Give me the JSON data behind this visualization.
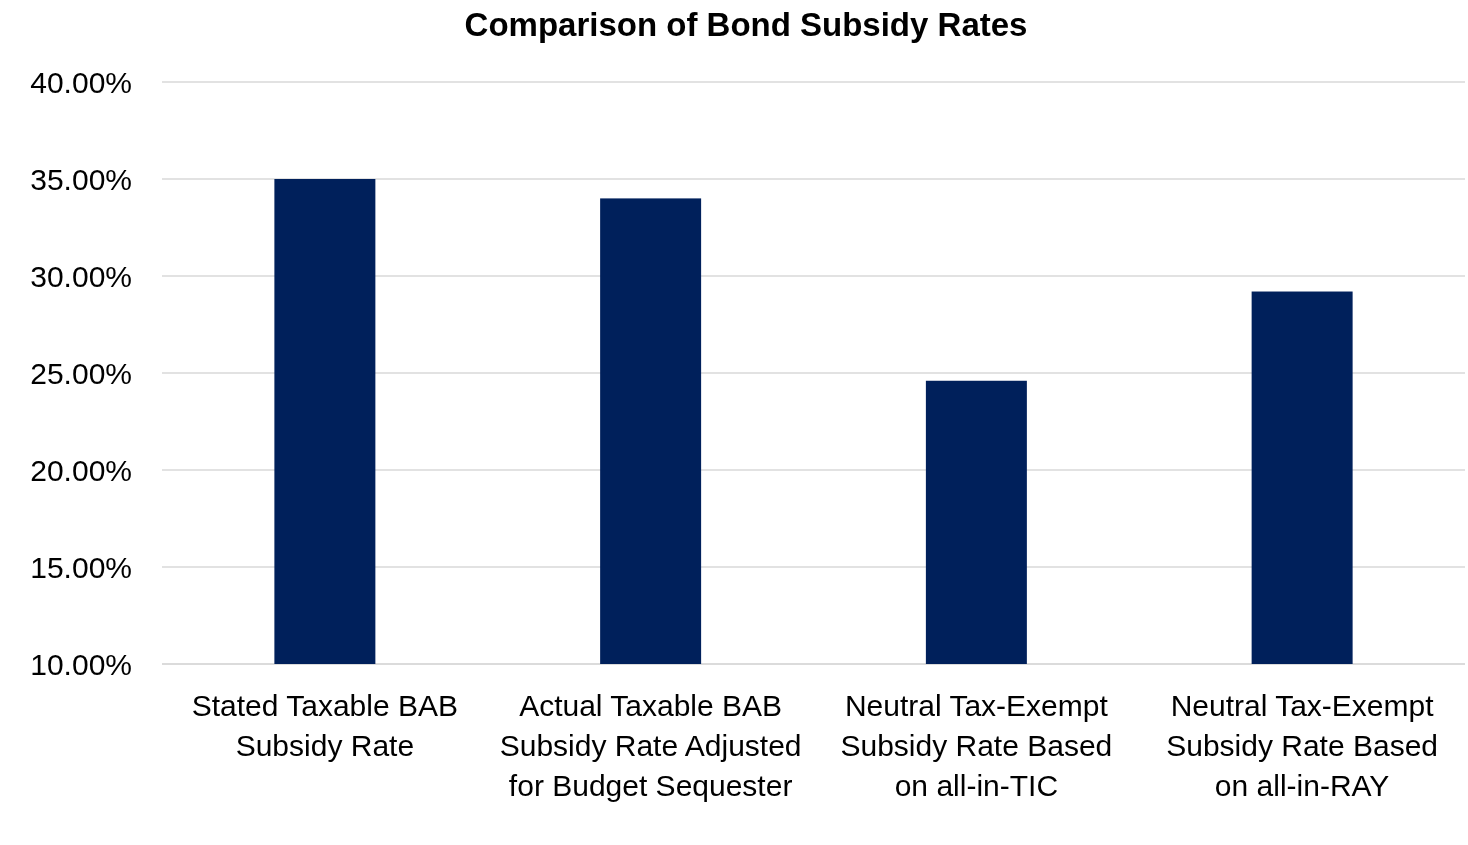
{
  "chart_data": {
    "type": "bar",
    "title": "Comparison of Bond Subsidy Rates",
    "categories": [
      "Stated Taxable BAB Subsidy Rate",
      "Actual Taxable BAB Subsidy Rate Adjusted for Budget Sequester",
      "Neutral Tax-Exempt Subsidy Rate Based on all-in-TIC",
      "Neutral Tax-Exempt Subsidy Rate Based on all-in-RAY"
    ],
    "values": [
      35.0,
      34.0,
      24.6,
      29.2
    ],
    "color": "#00205b",
    "ylim": [
      10,
      40
    ],
    "yticks": [
      {
        "value": 10,
        "label": "10.00%"
      },
      {
        "value": 15,
        "label": "15.00%"
      },
      {
        "value": 20,
        "label": "20.00%"
      },
      {
        "value": 25,
        "label": "25.00%"
      },
      {
        "value": 30,
        "label": "30.00%"
      },
      {
        "value": 35,
        "label": "35.00%"
      },
      {
        "value": 40,
        "label": "40.00%"
      }
    ],
    "grid": "y"
  }
}
